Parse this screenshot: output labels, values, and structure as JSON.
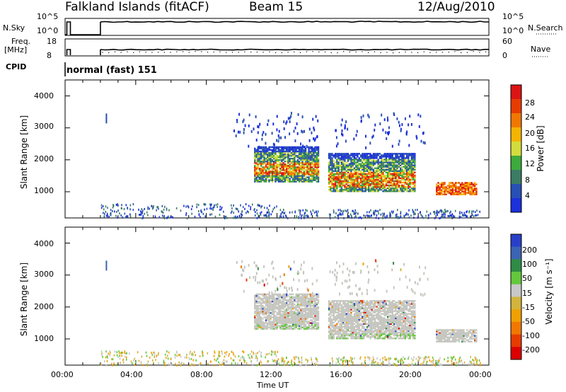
{
  "header": {
    "station": "Falkland Islands (fitACF)",
    "beam": "Beam 15",
    "date": "12/Aug/2010"
  },
  "status_panel": {
    "nsky_label": "N.Sky",
    "nsky_ticks": [
      "10^5",
      "10^0"
    ],
    "nsearch_label": "N.Search",
    "nsearch_ticks": [
      "10^5",
      "10^0"
    ],
    "freq_label": "Freq.",
    "freq_unit": "[MHz]",
    "freq_ticks": [
      "18",
      "8"
    ],
    "nave_label": "Nave",
    "nave_ticks": [
      "60",
      "0"
    ],
    "cpid_label": "CPID",
    "cpid_value": "normal (fast) 151"
  },
  "colors": {
    "power": [
      "#1c30dc",
      "#2850b4",
      "#3c7c64",
      "#3caa3c",
      "#d2dc3c",
      "#f5b400",
      "#f07800",
      "#e63c00",
      "#dc1414"
    ],
    "velocity": [
      "#2840c8",
      "#3c64b4",
      "#2e8c46",
      "#64c83c",
      "#c8c8c8",
      "#d2b43c",
      "#f0a000",
      "#f07800",
      "#e63c00",
      "#dc0000"
    ],
    "gray_scatter": "#c6c6c0"
  },
  "chart_data": [
    {
      "type": "heatmap",
      "name": "power",
      "ylabel": "Slant Range [km]",
      "y_ticks": [
        "4000",
        "3000",
        "2000",
        "1000"
      ],
      "ylim": [
        180,
        4500
      ],
      "xlim_hours": [
        0,
        24
      ],
      "x_ticks": [
        "00:00",
        "04:00",
        "08:00",
        "12:00",
        "16:00",
        "20:00",
        "00:00"
      ],
      "colorbar_label": "Power [dB]",
      "colorbar_ticks": [
        "28",
        "24",
        "20",
        "16",
        "12",
        "8",
        "4"
      ],
      "colorbar_range": [
        0,
        32
      ],
      "echo_regions": [
        {
          "t": [
            10.7,
            14.3
          ],
          "range_km": [
            1300,
            2400
          ],
          "power_db": [
            4,
            30
          ]
        },
        {
          "t": [
            14.9,
            19.8
          ],
          "range_km": [
            1000,
            2200
          ],
          "power_db": [
            4,
            30
          ]
        },
        {
          "t": [
            21.0,
            23.3
          ],
          "range_km": [
            900,
            1300
          ],
          "power_db": [
            16,
            30
          ]
        },
        {
          "t": [
            9.5,
            20.5
          ],
          "range_km": [
            2400,
            3500
          ],
          "power_db": [
            4,
            8
          ]
        }
      ]
    },
    {
      "type": "heatmap",
      "name": "velocity",
      "ylabel": "Slant Range [km]",
      "y_ticks": [
        "4000",
        "3000",
        "2000",
        "1000"
      ],
      "ylim": [
        180,
        4500
      ],
      "xlim_hours": [
        0,
        24
      ],
      "x_ticks": [
        "00:00",
        "04:00",
        "08:00",
        "12:00",
        "16:00",
        "20:00",
        "00:00"
      ],
      "xlabel": "Time UT",
      "colorbar_label": "Velocity [m s⁻¹]",
      "colorbar_ticks": [
        "200",
        "100",
        "50",
        "15",
        "-15",
        "-50",
        "-100",
        "-200"
      ],
      "echo_regions": [
        {
          "t": [
            10.7,
            14.3
          ],
          "range_km": [
            1300,
            2400
          ],
          "velocity": [
            -15,
            15
          ]
        },
        {
          "t": [
            14.9,
            19.8
          ],
          "range_km": [
            1000,
            2200
          ],
          "velocity": [
            -15,
            15
          ]
        },
        {
          "t": [
            21.0,
            23.3
          ],
          "range_km": [
            900,
            1300
          ],
          "velocity": [
            -15,
            15
          ]
        }
      ]
    }
  ]
}
